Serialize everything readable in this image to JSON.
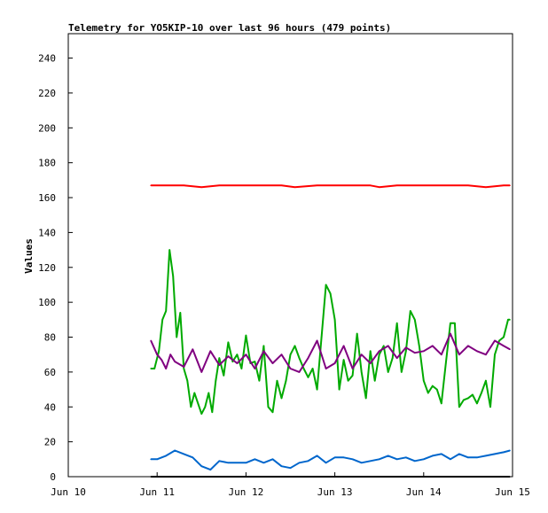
{
  "chart_data": {
    "type": "line",
    "title": "Telemetry for YO5KIP-10 over last 96 hours (479 points)",
    "xlabel": "",
    "ylabel": "Values",
    "grid": false,
    "legend": "none",
    "x_domain": [
      "Jun 10",
      "Jun 15"
    ],
    "xlim": [
      0,
      5
    ],
    "ylim": [
      0,
      254
    ],
    "x_ticks": [
      {
        "pos": 0,
        "label": "Jun 10"
      },
      {
        "pos": 1,
        "label": "Jun 11"
      },
      {
        "pos": 2,
        "label": "Jun 12"
      },
      {
        "pos": 3,
        "label": "Jun 13"
      },
      {
        "pos": 4,
        "label": "Jun 14"
      },
      {
        "pos": 5,
        "label": "Jun 15"
      }
    ],
    "y_ticks": [
      0,
      20,
      40,
      60,
      80,
      100,
      120,
      140,
      160,
      180,
      200,
      220,
      240
    ],
    "series": [
      {
        "color": "#ff0000",
        "x": [
          0.93,
          1.1,
          1.3,
          1.5,
          1.7,
          2.0,
          2.2,
          2.4,
          2.55,
          2.8,
          3.0,
          3.2,
          3.4,
          3.5,
          3.7,
          3.9,
          4.1,
          4.3,
          4.5,
          4.7,
          4.9,
          4.97
        ],
        "values": [
          167,
          167,
          167,
          166,
          167,
          167,
          167,
          167,
          166,
          167,
          167,
          167,
          167,
          166,
          167,
          167,
          167,
          167,
          167,
          166,
          167,
          167
        ]
      },
      {
        "color": "#00aa00",
        "x": [
          0.93,
          0.97,
          1.02,
          1.06,
          1.1,
          1.14,
          1.18,
          1.22,
          1.26,
          1.3,
          1.34,
          1.38,
          1.42,
          1.46,
          1.5,
          1.54,
          1.58,
          1.62,
          1.66,
          1.7,
          1.75,
          1.8,
          1.85,
          1.9,
          1.95,
          2.0,
          2.05,
          2.1,
          2.15,
          2.2,
          2.25,
          2.3,
          2.35,
          2.4,
          2.45,
          2.5,
          2.55,
          2.6,
          2.65,
          2.7,
          2.75,
          2.8,
          2.85,
          2.9,
          2.95,
          3.0,
          3.05,
          3.1,
          3.15,
          3.2,
          3.25,
          3.3,
          3.35,
          3.4,
          3.45,
          3.5,
          3.55,
          3.6,
          3.65,
          3.7,
          3.75,
          3.8,
          3.85,
          3.9,
          3.95,
          4.0,
          4.05,
          4.1,
          4.15,
          4.2,
          4.25,
          4.3,
          4.35,
          4.4,
          4.45,
          4.5,
          4.55,
          4.6,
          4.65,
          4.7,
          4.75,
          4.8,
          4.85,
          4.9,
          4.95,
          4.97
        ],
        "values": [
          62,
          62,
          72,
          90,
          95,
          130,
          115,
          80,
          94,
          62,
          55,
          40,
          48,
          42,
          36,
          40,
          48,
          37,
          55,
          68,
          58,
          77,
          66,
          70,
          62,
          81,
          65,
          66,
          55,
          75,
          40,
          37,
          55,
          45,
          55,
          70,
          75,
          68,
          62,
          57,
          62,
          50,
          80,
          110,
          105,
          90,
          50,
          67,
          55,
          58,
          82,
          60,
          45,
          72,
          55,
          70,
          75,
          60,
          68,
          88,
          60,
          72,
          95,
          90,
          75,
          55,
          48,
          52,
          50,
          42,
          65,
          88,
          88,
          40,
          44,
          45,
          47,
          42,
          48,
          55,
          40,
          70,
          78,
          80,
          90,
          90
        ]
      },
      {
        "color": "#800080",
        "x": [
          0.93,
          1.0,
          1.05,
          1.1,
          1.15,
          1.2,
          1.3,
          1.4,
          1.5,
          1.6,
          1.7,
          1.8,
          1.9,
          2.0,
          2.1,
          2.2,
          2.3,
          2.4,
          2.5,
          2.6,
          2.7,
          2.8,
          2.9,
          3.0,
          3.1,
          3.2,
          3.3,
          3.4,
          3.5,
          3.6,
          3.7,
          3.8,
          3.9,
          4.0,
          4.1,
          4.2,
          4.3,
          4.4,
          4.5,
          4.6,
          4.7,
          4.8,
          4.9,
          4.97
        ],
        "values": [
          78,
          70,
          67,
          62,
          70,
          66,
          63,
          73,
          60,
          72,
          64,
          69,
          65,
          70,
          62,
          72,
          65,
          70,
          62,
          60,
          68,
          78,
          62,
          65,
          75,
          62,
          70,
          65,
          72,
          75,
          68,
          74,
          71,
          72,
          75,
          70,
          82,
          70,
          75,
          72,
          70,
          78,
          75,
          73
        ]
      },
      {
        "color": "#0066cc",
        "x": [
          0.93,
          1.0,
          1.1,
          1.2,
          1.3,
          1.4,
          1.5,
          1.6,
          1.7,
          1.8,
          1.9,
          2.0,
          2.1,
          2.2,
          2.3,
          2.4,
          2.5,
          2.6,
          2.7,
          2.8,
          2.9,
          3.0,
          3.1,
          3.2,
          3.3,
          3.4,
          3.5,
          3.6,
          3.7,
          3.8,
          3.9,
          4.0,
          4.1,
          4.2,
          4.3,
          4.4,
          4.5,
          4.6,
          4.7,
          4.8,
          4.9,
          4.97
        ],
        "values": [
          10,
          10,
          12,
          15,
          13,
          11,
          6,
          4,
          9,
          8,
          8,
          8,
          10,
          8,
          10,
          6,
          5,
          8,
          9,
          12,
          8,
          11,
          11,
          10,
          8,
          9,
          10,
          12,
          10,
          11,
          9,
          10,
          12,
          13,
          10,
          13,
          11,
          11,
          12,
          13,
          14,
          15
        ]
      },
      {
        "color": "#000000",
        "x": [
          0.93,
          4.97
        ],
        "values": [
          0,
          0
        ]
      }
    ]
  }
}
